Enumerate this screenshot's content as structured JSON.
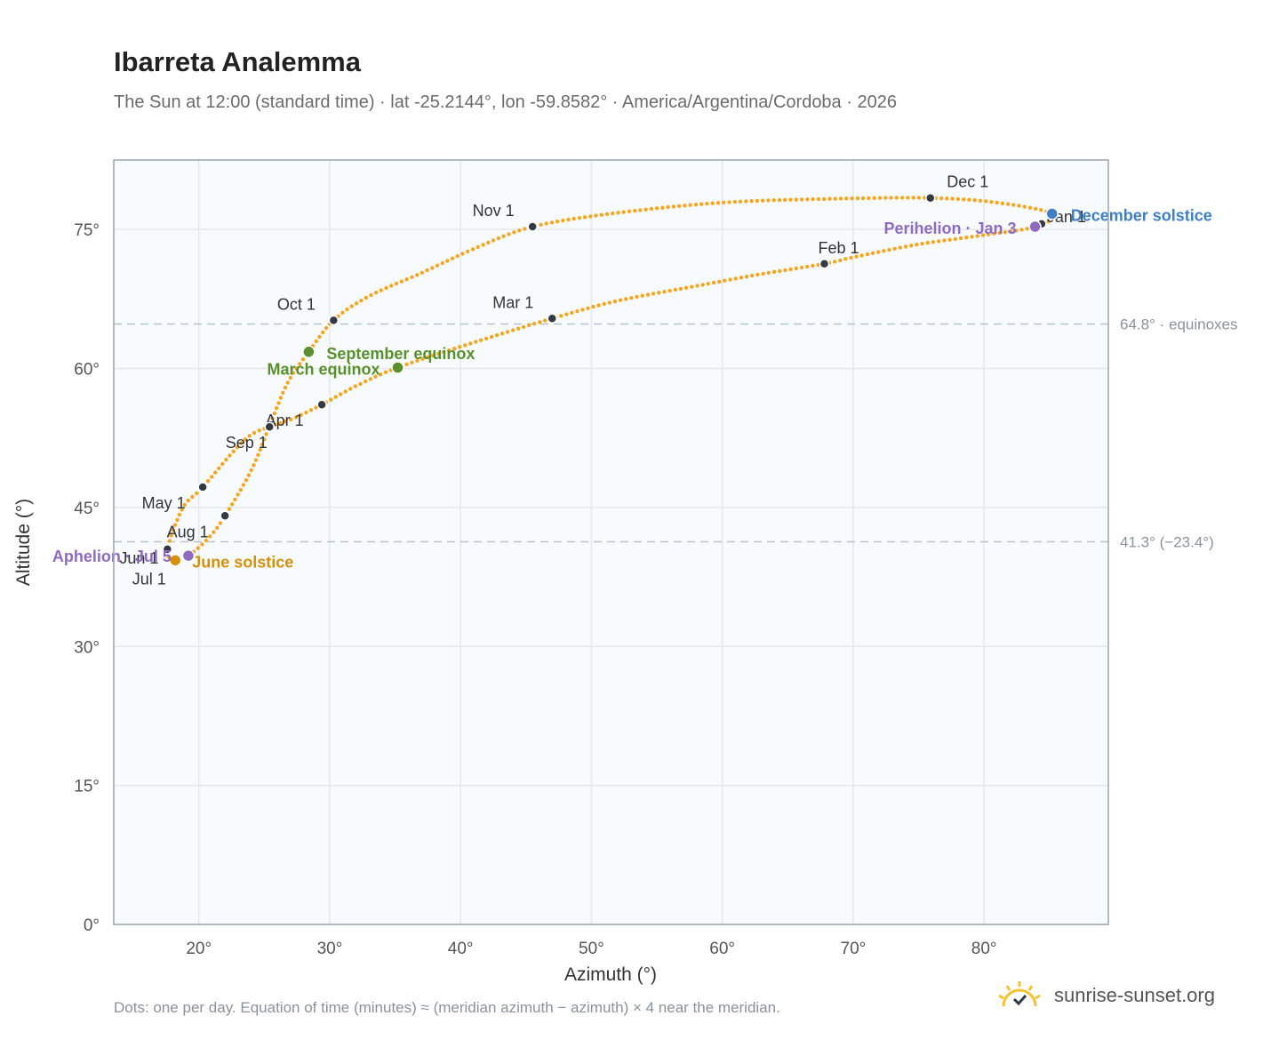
{
  "title": "Ibarreta Analemma",
  "subtitle": "The Sun at 12:00 (standard time) · lat -25.2144°, lon -59.8582° · America/Argentina/Cordoba · 2026",
  "footnote": "Dots: one per day. Equation of time (minutes) ≈ (meridian azimuth − azimuth) × 4 near the meridian.",
  "brand": {
    "text": "sunrise-sunset.org",
    "icon": "sun-logo-icon"
  },
  "chart_data": {
    "type": "scatter",
    "xlabel": "Azimuth (°)",
    "ylabel": "Altitude (°)",
    "xlim": [
      13.5,
      89.5
    ],
    "ylim": [
      0,
      82.5
    ],
    "xticks": [
      20,
      30,
      40,
      50,
      60,
      70,
      80
    ],
    "yticks": [
      0,
      15,
      30,
      45,
      60,
      75
    ],
    "grid": true,
    "colors": {
      "curve": "#f5a623",
      "month": "#333a44",
      "equinox": "#5a8f2e",
      "december_solstice": "#3f7fc4",
      "june_solstice": "#d4900e",
      "apsis": "#8e6bbf",
      "reference": "#b8c2cc",
      "plot_bg": "#f8fbfd",
      "frame": "#9aa5b1",
      "grid": "#e3e8ed"
    },
    "curve_knots": [
      [
        85.2,
        76.7
      ],
      [
        83.9,
        75.3
      ],
      [
        80.0,
        74.4
      ],
      [
        75.0,
        73.4
      ],
      [
        70.0,
        72.0
      ],
      [
        67.8,
        71.3
      ],
      [
        63.0,
        70.2
      ],
      [
        58.0,
        68.9
      ],
      [
        52.0,
        67.3
      ],
      [
        47.0,
        65.4
      ],
      [
        41.0,
        62.8
      ],
      [
        35.2,
        60.1
      ],
      [
        32.0,
        58.1
      ],
      [
        29.4,
        56.1
      ],
      [
        27.2,
        54.6
      ],
      [
        25.4,
        53.7
      ],
      [
        23.5,
        52.3
      ],
      [
        20.3,
        47.2
      ],
      [
        18.8,
        45.0
      ],
      [
        17.6,
        40.5
      ],
      [
        18.1,
        39.4
      ],
      [
        19.2,
        39.8
      ],
      [
        20.8,
        41.8
      ],
      [
        22.0,
        44.1
      ],
      [
        24.0,
        49.0
      ],
      [
        25.4,
        53.8
      ],
      [
        26.8,
        58.5
      ],
      [
        28.4,
        61.8
      ],
      [
        30.3,
        65.2
      ],
      [
        33.0,
        67.8
      ],
      [
        37.0,
        70.3
      ],
      [
        41.0,
        72.9
      ],
      [
        45.5,
        75.3
      ],
      [
        52.0,
        76.8
      ],
      [
        60.0,
        77.9
      ],
      [
        68.0,
        78.3
      ],
      [
        75.9,
        78.4
      ],
      [
        81.0,
        77.9
      ],
      [
        85.2,
        76.7
      ]
    ],
    "reference_lines": [
      {
        "y": 64.8,
        "label": "64.8° · equinoxes"
      },
      {
        "y": 41.3,
        "label": "41.3° (−23.4°)"
      }
    ],
    "month_markers": [
      {
        "label": "Jan 1",
        "x": 84.4,
        "y": 75.6
      },
      {
        "label": "Feb 1",
        "x": 67.8,
        "y": 71.3
      },
      {
        "label": "Mar 1",
        "x": 47.0,
        "y": 65.4
      },
      {
        "label": "Apr 1",
        "x": 29.4,
        "y": 56.1
      },
      {
        "label": "May 1",
        "x": 20.3,
        "y": 47.2
      },
      {
        "label": "Jun 1",
        "x": 17.6,
        "y": 40.5
      },
      {
        "label": "Jul 1",
        "x": 18.1,
        "y": 39.4
      },
      {
        "label": "Aug 1",
        "x": 22.0,
        "y": 44.1
      },
      {
        "label": "Sep 1",
        "x": 25.4,
        "y": 53.7
      },
      {
        "label": "Oct 1",
        "x": 30.3,
        "y": 65.2
      },
      {
        "label": "Nov 1",
        "x": 45.5,
        "y": 75.3
      },
      {
        "label": "Dec 1",
        "x": 75.9,
        "y": 78.4
      }
    ],
    "events": [
      {
        "label": "December solstice",
        "x": 85.2,
        "y": 76.7,
        "kind": "december_solstice"
      },
      {
        "label": "Perihelion · Jan 3",
        "x": 83.9,
        "y": 75.3,
        "kind": "apsis"
      },
      {
        "label": "March equinox",
        "x": 35.2,
        "y": 60.1,
        "kind": "equinox"
      },
      {
        "label": "September equinox",
        "x": 28.4,
        "y": 61.8,
        "kind": "equinox"
      },
      {
        "label": "June solstice",
        "x": 18.2,
        "y": 39.3,
        "kind": "june_solstice"
      },
      {
        "label": "Aphelion · Jul 5",
        "x": 19.2,
        "y": 39.8,
        "kind": "apsis"
      }
    ]
  }
}
